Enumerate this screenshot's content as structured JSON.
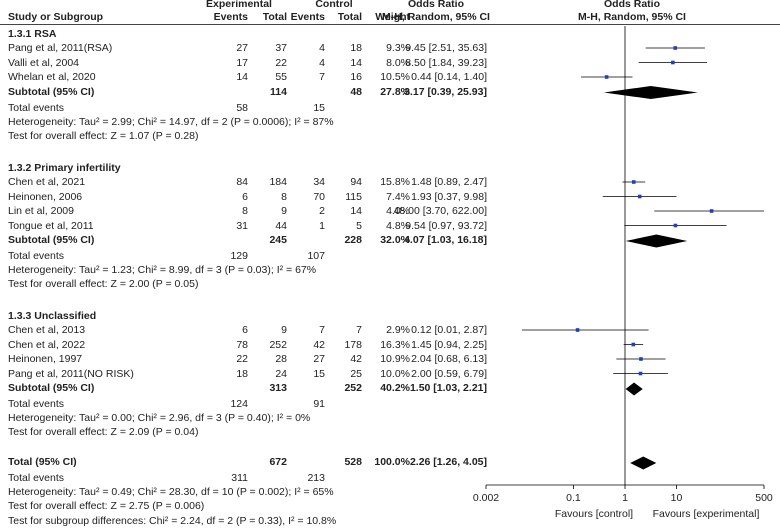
{
  "chart_data": {
    "type": "forest",
    "header": {
      "experimental": "Experimental",
      "control": "Control",
      "events": "Events",
      "total": "Total",
      "study": "Study or Subgroup",
      "weight": "Weight",
      "or_title": "Odds Ratio",
      "or_sub": "M-H, Random, 95% CI",
      "plot_title": "Odds Ratio",
      "plot_sub": "M-H, Random, 95% CI"
    },
    "subgroups": [
      {
        "name": "1.3.1 RSA",
        "studies": [
          {
            "study": "Pang et al, 2011(RSA)",
            "e_ev": "27",
            "e_tot": "37",
            "c_ev": "4",
            "c_tot": "18",
            "weight": "9.3%",
            "ci": "9.45 [2.51, 35.63]",
            "or": 9.45,
            "lo": 2.51,
            "hi": 35.63
          },
          {
            "study": "Valli et al, 2004",
            "e_ev": "17",
            "e_tot": "22",
            "c_ev": "4",
            "c_tot": "14",
            "weight": "8.0%",
            "ci": "8.50 [1.84, 39.23]",
            "or": 8.5,
            "lo": 1.84,
            "hi": 39.23
          },
          {
            "study": "Whelan et al, 2020",
            "e_ev": "14",
            "e_tot": "55",
            "c_ev": "7",
            "c_tot": "16",
            "weight": "10.5%",
            "ci": "0.44 [0.14, 1.40]",
            "or": 0.44,
            "lo": 0.14,
            "hi": 1.4
          }
        ],
        "subtotal": {
          "label": "Subtotal (95% CI)",
          "e_tot": "114",
          "c_tot": "48",
          "weight": "27.8%",
          "ci": "3.17 [0.39, 25.93]",
          "or": 3.17,
          "lo": 0.39,
          "hi": 25.93
        },
        "events": {
          "label": "Total events",
          "e": "58",
          "c": "15"
        },
        "het": "Heterogeneity: Tau² = 2.99; Chi² = 14.97, df = 2 (P = 0.0006); I² = 87%",
        "overall": "Test for overall effect: Z = 1.07 (P = 0.28)"
      },
      {
        "name": "1.3.2 Primary infertility",
        "studies": [
          {
            "study": "Chen et al, 2021",
            "e_ev": "84",
            "e_tot": "184",
            "c_ev": "34",
            "c_tot": "94",
            "weight": "15.8%",
            "ci": "1.48 [0.89, 2.47]",
            "or": 1.48,
            "lo": 0.89,
            "hi": 2.47
          },
          {
            "study": "Heinonen, 2006",
            "e_ev": "6",
            "e_tot": "8",
            "c_ev": "70",
            "c_tot": "115",
            "weight": "7.4%",
            "ci": "1.93 [0.37, 9.98]",
            "or": 1.93,
            "lo": 0.37,
            "hi": 9.98
          },
          {
            "study": "Lin et al, 2009",
            "e_ev": "8",
            "e_tot": "9",
            "c_ev": "2",
            "c_tot": "14",
            "weight": "4.0%",
            "ci": "48.00 [3.70, 622.00]",
            "or": 48.0,
            "lo": 3.7,
            "hi": 622.0
          },
          {
            "study": "Tongue et al, 2011",
            "e_ev": "31",
            "e_tot": "44",
            "c_ev": "1",
            "c_tot": "5",
            "weight": "4.8%",
            "ci": "9.54 [0.97, 93.72]",
            "or": 9.54,
            "lo": 0.97,
            "hi": 93.72
          }
        ],
        "subtotal": {
          "label": "Subtotal (95% CI)",
          "e_tot": "245",
          "c_tot": "228",
          "weight": "32.0%",
          "ci": "4.07 [1.03, 16.18]",
          "or": 4.07,
          "lo": 1.03,
          "hi": 16.18
        },
        "events": {
          "label": "Total events",
          "e": "129",
          "c": "107"
        },
        "het": "Heterogeneity: Tau² = 1.23; Chi² = 8.99, df = 3 (P = 0.03); I² = 67%",
        "overall": "Test for overall effect: Z = 2.00 (P = 0.05)"
      },
      {
        "name": "1.3.3 Unclassified",
        "studies": [
          {
            "study": "Chen et al, 2013",
            "e_ev": "6",
            "e_tot": "9",
            "c_ev": "7",
            "c_tot": "7",
            "weight": "2.9%",
            "ci": "0.12 [0.01, 2.87]",
            "or": 0.12,
            "lo": 0.01,
            "hi": 2.87
          },
          {
            "study": "Chen et al, 2022",
            "e_ev": "78",
            "e_tot": "252",
            "c_ev": "42",
            "c_tot": "178",
            "weight": "16.3%",
            "ci": "1.45 [0.94, 2.25]",
            "or": 1.45,
            "lo": 0.94,
            "hi": 2.25
          },
          {
            "study": "Heinonen, 1997",
            "e_ev": "22",
            "e_tot": "28",
            "c_ev": "27",
            "c_tot": "42",
            "weight": "10.9%",
            "ci": "2.04 [0.68, 6.13]",
            "or": 2.04,
            "lo": 0.68,
            "hi": 6.13
          },
          {
            "study": "Pang et al, 2011(NO RISK)",
            "e_ev": "18",
            "e_tot": "24",
            "c_ev": "15",
            "c_tot": "25",
            "weight": "10.0%",
            "ci": "2.00 [0.59, 6.79]",
            "or": 2.0,
            "lo": 0.59,
            "hi": 6.79
          }
        ],
        "subtotal": {
          "label": "Subtotal (95% CI)",
          "e_tot": "313",
          "c_tot": "252",
          "weight": "40.2%",
          "ci": "1.50 [1.03, 2.21]",
          "or": 1.5,
          "lo": 1.03,
          "hi": 2.21
        },
        "events": {
          "label": "Total events",
          "e": "124",
          "c": "91"
        },
        "het": "Heterogeneity: Tau² = 0.00; Chi² = 2.96, df = 3 (P = 0.40); I² = 0%",
        "overall": "Test for overall effect: Z = 2.09 (P = 0.04)"
      }
    ],
    "total": {
      "label": "Total (95% CI)",
      "e_tot": "672",
      "c_tot": "528",
      "weight": "100.0%",
      "ci": "2.26 [1.26, 4.05]",
      "or": 2.26,
      "lo": 1.26,
      "hi": 4.05
    },
    "total_events": {
      "label": "Total events",
      "e": "311",
      "c": "213"
    },
    "total_het": "Heterogeneity: Tau² = 0.49; Chi² = 28.30, df = 10 (P = 0.002); I² = 65%",
    "total_overall": "Test for overall effect: Z = 2.75 (P = 0.006)",
    "subgroup_diff": "Test for subgroup differences: Chi² = 2.24, df = 2 (P = 0.33), I² = 10.8%",
    "axis": {
      "scale": "log",
      "xlim": [
        0.002,
        500
      ],
      "ticks": [
        0.002,
        0.1,
        1,
        10,
        500
      ],
      "tick_labels": [
        "0.002",
        "0.1",
        "1",
        "10",
        "500"
      ],
      "favours_left": "Favours [control]",
      "favours_right": "Favours [experimental]"
    },
    "colors": {
      "square": "#1f3fbf",
      "diamond": "#000000",
      "line": "#000000"
    }
  }
}
